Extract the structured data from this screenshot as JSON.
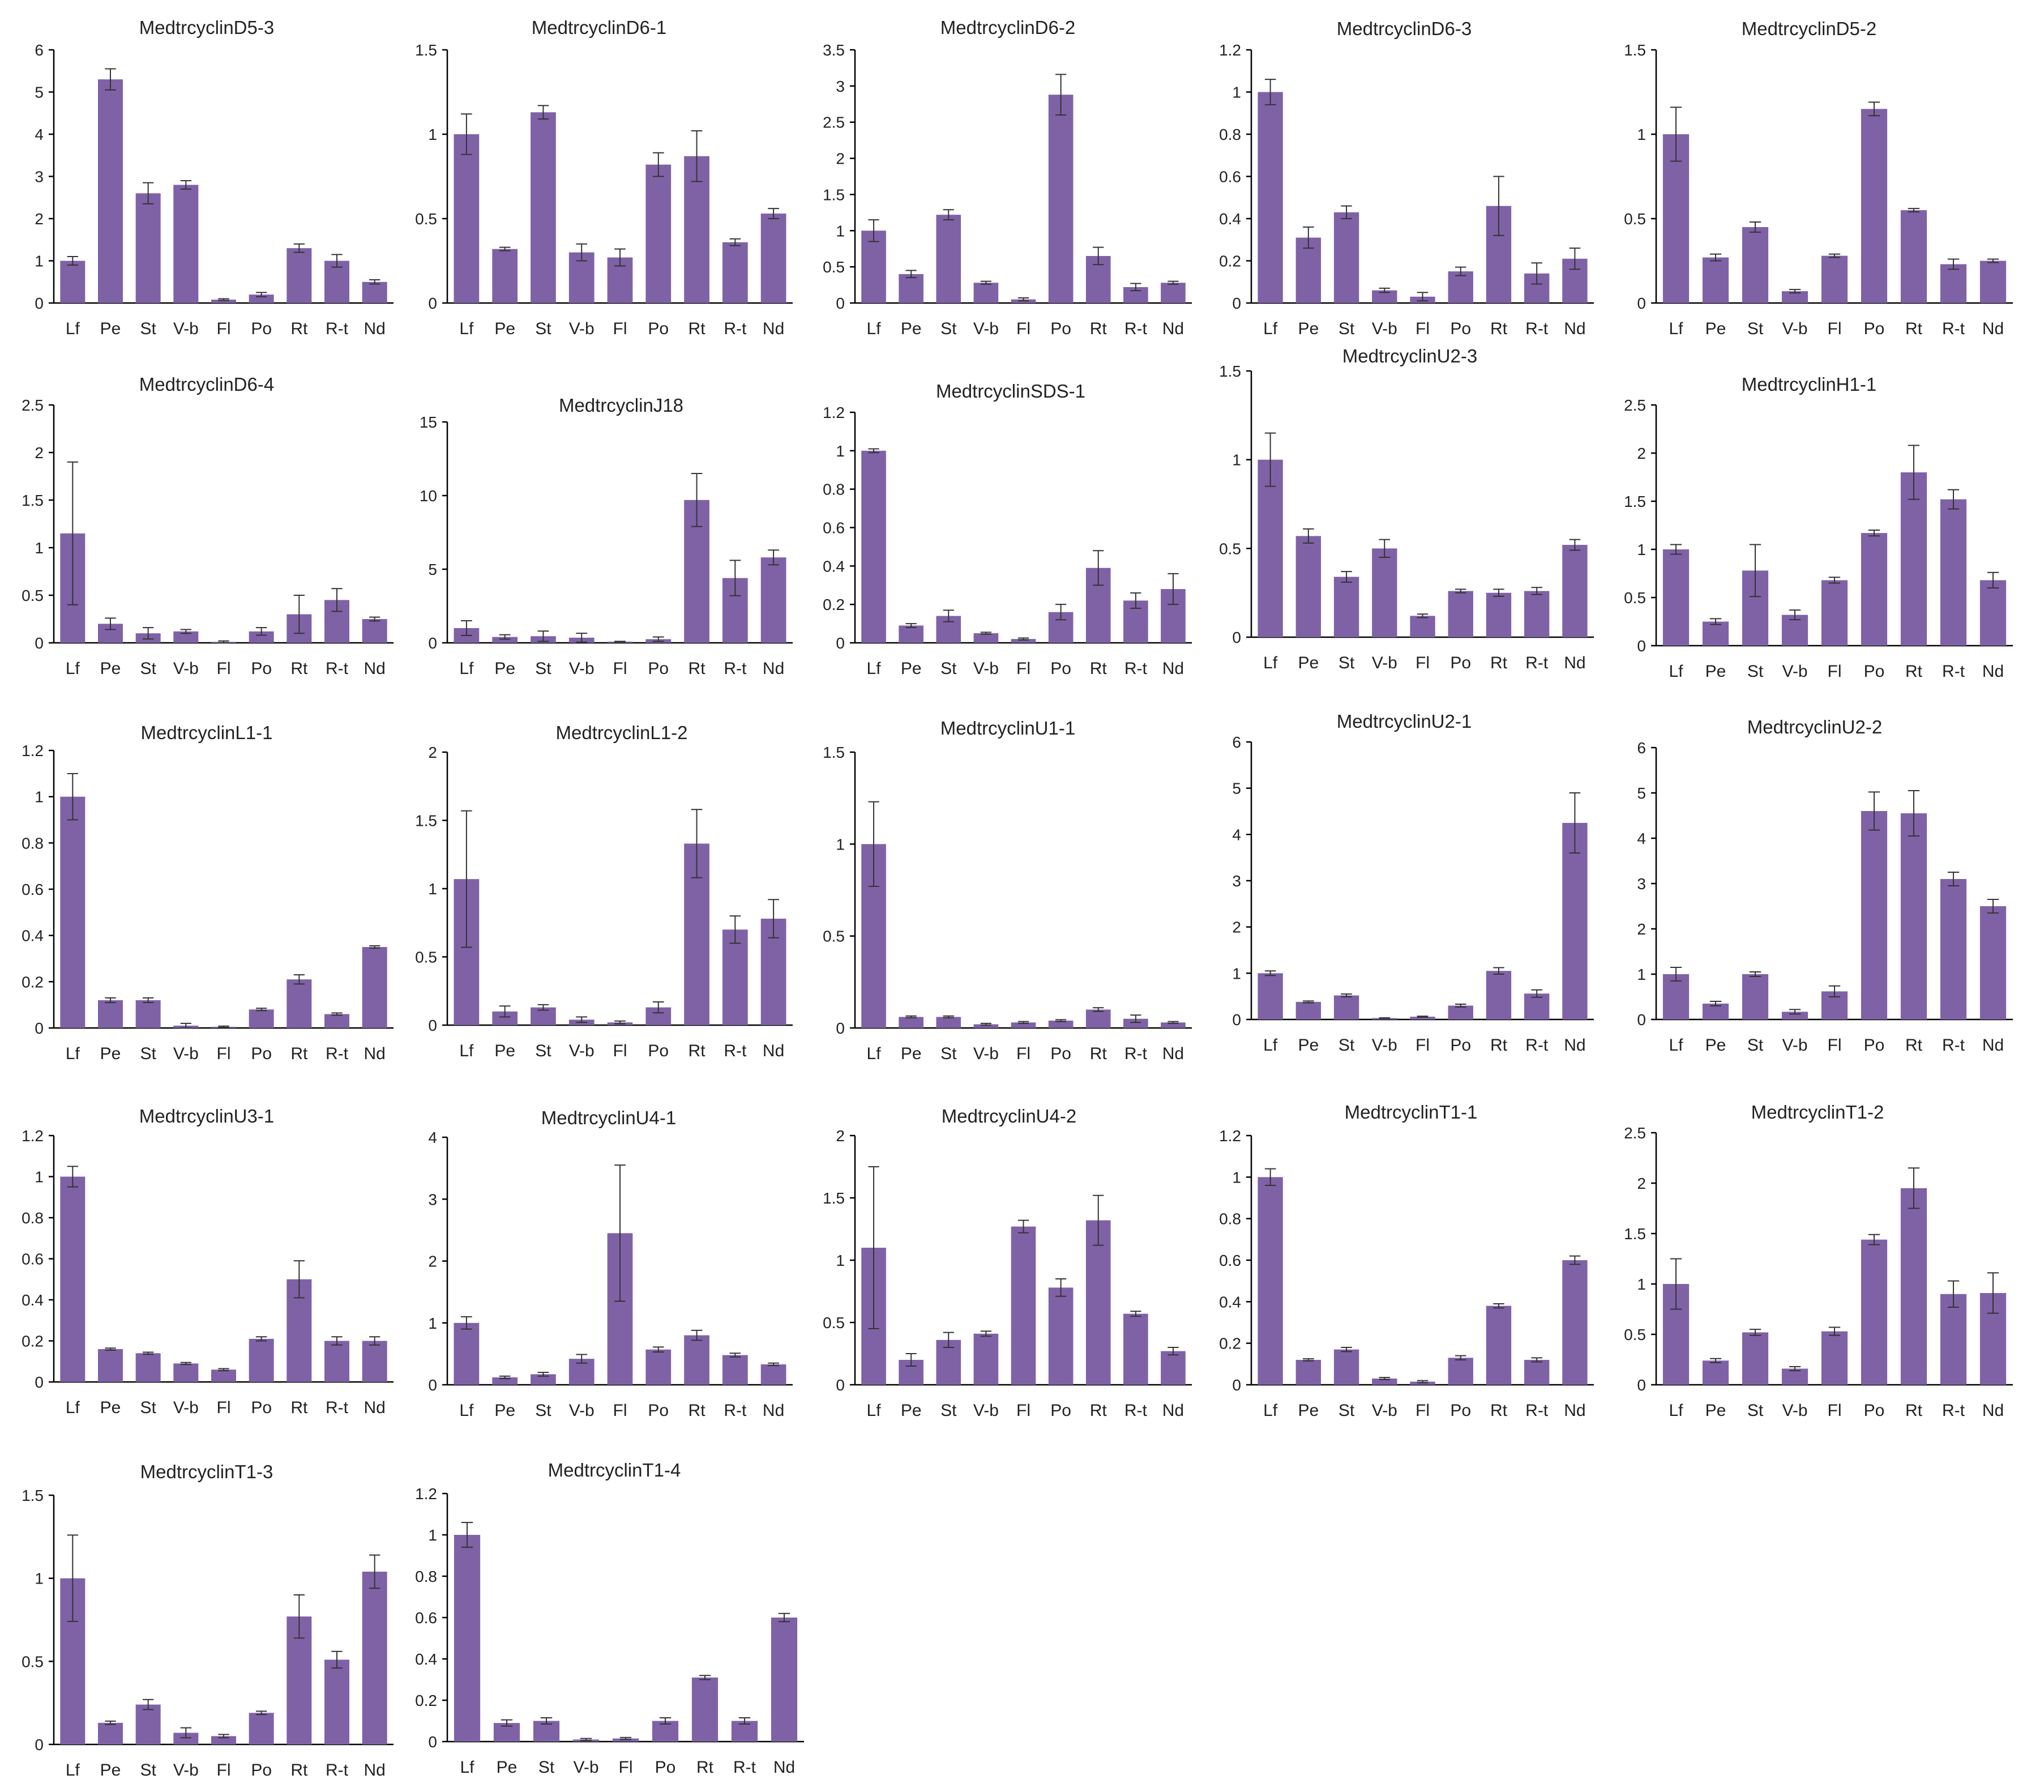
{
  "colors": {
    "bar": "#7f62a6",
    "axis": "#000000",
    "text": "#222222",
    "background": "#ffffff"
  },
  "chart_data": [
    {
      "type": "bar",
      "title": "MedtrcyclinD5-3",
      "categories": [
        "Lf",
        "Pe",
        "St",
        "V-b",
        "Fl",
        "Po",
        "Rt",
        "R-t",
        "Nd"
      ],
      "values": [
        1.0,
        5.3,
        2.6,
        2.8,
        0.08,
        0.2,
        1.3,
        1.0,
        0.5
      ],
      "errors": [
        0.1,
        0.25,
        0.25,
        0.1,
        0.02,
        0.05,
        0.1,
        0.15,
        0.05
      ],
      "ylim": [
        0,
        6
      ],
      "yticks": [
        "0",
        "1",
        "2",
        "3",
        "4",
        "5",
        "6"
      ],
      "xlabel": "",
      "ylabel": ""
    },
    {
      "type": "bar",
      "title": "MedtrcyclinD6-1",
      "categories": [
        "Lf",
        "Pe",
        "St",
        "V-b",
        "Fl",
        "Po",
        "Rt",
        "R-t",
        "Nd"
      ],
      "values": [
        1.0,
        0.32,
        1.13,
        0.3,
        0.27,
        0.82,
        0.87,
        0.36,
        0.53
      ],
      "errors": [
        0.12,
        0.01,
        0.04,
        0.05,
        0.05,
        0.07,
        0.15,
        0.02,
        0.03
      ],
      "ylim": [
        0,
        1.5
      ],
      "yticks": [
        "0",
        "0.5",
        "1",
        "1.5"
      ],
      "xlabel": "",
      "ylabel": ""
    },
    {
      "type": "bar",
      "title": "MedtrcyclinD6-2",
      "categories": [
        "Lf",
        "Pe",
        "St",
        "V-b",
        "Fl",
        "Po",
        "Rt",
        "R-t",
        "Nd"
      ],
      "values": [
        1.0,
        0.4,
        1.22,
        0.28,
        0.05,
        2.88,
        0.65,
        0.22,
        0.28
      ],
      "errors": [
        0.15,
        0.05,
        0.07,
        0.02,
        0.02,
        0.28,
        0.12,
        0.05,
        0.02
      ],
      "ylim": [
        0,
        3.5
      ],
      "yticks": [
        "0",
        "0.5",
        "1",
        "1.5",
        "2",
        "2.5",
        "3",
        "3.5"
      ],
      "xlabel": "",
      "ylabel": ""
    },
    {
      "type": "bar",
      "title": "MedtrcyclinD6-3",
      "categories": [
        "Lf",
        "Pe",
        "St",
        "V-b",
        "Fl",
        "Po",
        "Rt",
        "R-t",
        "Nd"
      ],
      "values": [
        1.0,
        0.31,
        0.43,
        0.06,
        0.03,
        0.15,
        0.46,
        0.14,
        0.21
      ],
      "errors": [
        0.06,
        0.05,
        0.03,
        0.01,
        0.02,
        0.02,
        0.14,
        0.05,
        0.05
      ],
      "ylim": [
        0,
        1.2
      ],
      "yticks": [
        "0",
        "0.2",
        "0.4",
        "0.6",
        "0.8",
        "1",
        "1.2"
      ],
      "xlabel": "",
      "ylabel": ""
    },
    {
      "type": "bar",
      "title": "MedtrcyclinD5-2",
      "categories": [
        "Lf",
        "Pe",
        "St",
        "V-b",
        "Fl",
        "Po",
        "Rt",
        "R-t",
        "Nd"
      ],
      "values": [
        1.0,
        0.27,
        0.45,
        0.07,
        0.28,
        1.15,
        0.55,
        0.23,
        0.25
      ],
      "errors": [
        0.16,
        0.02,
        0.03,
        0.01,
        0.01,
        0.04,
        0.01,
        0.03,
        0.01
      ],
      "ylim": [
        0,
        1.5
      ],
      "yticks": [
        "0",
        "0.5",
        "1",
        "1.5"
      ],
      "xlabel": "",
      "ylabel": ""
    },
    {
      "type": "bar",
      "title": "MedtrcyclinD6-4",
      "categories": [
        "Lf",
        "Pe",
        "St",
        "V-b",
        "Fl",
        "Po",
        "Rt",
        "R-t",
        "Nd"
      ],
      "values": [
        1.15,
        0.2,
        0.1,
        0.12,
        0.01,
        0.12,
        0.3,
        0.45,
        0.25
      ],
      "errors": [
        0.75,
        0.06,
        0.06,
        0.02,
        0.01,
        0.04,
        0.2,
        0.12,
        0.02
      ],
      "ylim": [
        0,
        2.5
      ],
      "yticks": [
        "0",
        "0.5",
        "1",
        "1.5",
        "2",
        "2.5"
      ],
      "xlabel": "",
      "ylabel": ""
    },
    {
      "type": "bar",
      "title": "MedtrcyclinJ18",
      "categories": [
        "Lf",
        "Pe",
        "St",
        "V-b",
        "Fl",
        "Po",
        "Rt",
        "R-t",
        "Nd"
      ],
      "values": [
        1.0,
        0.4,
        0.45,
        0.35,
        0.08,
        0.25,
        9.7,
        4.4,
        5.8
      ],
      "errors": [
        0.5,
        0.15,
        0.35,
        0.3,
        0.02,
        0.15,
        1.8,
        1.2,
        0.5
      ],
      "ylim": [
        0,
        15
      ],
      "yticks": [
        "0",
        "5",
        "10",
        "15"
      ],
      "xlabel": "",
      "ylabel": ""
    },
    {
      "type": "bar",
      "title": "MedtrcyclinSDS-1",
      "categories": [
        "Lf",
        "Pe",
        "St",
        "V-b",
        "Fl",
        "Po",
        "Rt",
        "R-t",
        "Nd"
      ],
      "values": [
        1.0,
        0.09,
        0.14,
        0.05,
        0.02,
        0.16,
        0.39,
        0.22,
        0.28
      ],
      "errors": [
        0.01,
        0.01,
        0.03,
        0.005,
        0.005,
        0.04,
        0.09,
        0.04,
        0.08
      ],
      "ylim": [
        0,
        1.2
      ],
      "yticks": [
        "0",
        "0.2",
        "0.4",
        "0.6",
        "0.8",
        "1",
        "1.2"
      ],
      "xlabel": "",
      "ylabel": ""
    },
    {
      "type": "bar",
      "title": "MedtrcyclinU2-3",
      "categories": [
        "Lf",
        "Pe",
        "St",
        "V-b",
        "Fl",
        "Po",
        "Rt",
        "R-t",
        "Nd"
      ],
      "values": [
        1.0,
        0.57,
        0.34,
        0.5,
        0.12,
        0.26,
        0.25,
        0.26,
        0.52
      ],
      "errors": [
        0.15,
        0.04,
        0.03,
        0.05,
        0.01,
        0.01,
        0.02,
        0.02,
        0.03
      ],
      "ylim": [
        0,
        1.5
      ],
      "yticks": [
        "0",
        "0.5",
        "1",
        "1.5"
      ],
      "xlabel": "",
      "ylabel": ""
    },
    {
      "type": "bar",
      "title": "MedtrcyclinH1-1",
      "categories": [
        "Lf",
        "Pe",
        "St",
        "V-b",
        "Fl",
        "Po",
        "Rt",
        "R-t",
        "Nd"
      ],
      "values": [
        1.0,
        0.25,
        0.78,
        0.32,
        0.68,
        1.17,
        1.8,
        1.52,
        0.68
      ],
      "errors": [
        0.05,
        0.03,
        0.27,
        0.05,
        0.03,
        0.03,
        0.28,
        0.1,
        0.08
      ],
      "ylim": [
        0,
        2.5
      ],
      "yticks": [
        "0",
        "0.5",
        "1",
        "1.5",
        "2",
        "2.5"
      ],
      "xlabel": "",
      "ylabel": ""
    },
    {
      "type": "bar",
      "title": "MedtrcyclinL1-1",
      "categories": [
        "Lf",
        "Pe",
        "St",
        "V-b",
        "Fl",
        "Po",
        "Rt",
        "R-t",
        "Nd"
      ],
      "values": [
        1.0,
        0.12,
        0.12,
        0.01,
        0.005,
        0.08,
        0.21,
        0.06,
        0.35
      ],
      "errors": [
        0.1,
        0.01,
        0.01,
        0.01,
        0.003,
        0.005,
        0.02,
        0.005,
        0.005
      ],
      "ylim": [
        0,
        1.2
      ],
      "yticks": [
        "0",
        "0.2",
        "0.4",
        "0.6",
        "0.8",
        "1",
        "1.2"
      ],
      "xlabel": "",
      "ylabel": ""
    },
    {
      "type": "bar",
      "title": "MedtrcyclinL1-2",
      "categories": [
        "Lf",
        "Pe",
        "St",
        "V-b",
        "Fl",
        "Po",
        "Rt",
        "R-t",
        "Nd"
      ],
      "values": [
        1.07,
        0.1,
        0.13,
        0.04,
        0.02,
        0.13,
        1.33,
        0.7,
        0.78
      ],
      "errors": [
        0.5,
        0.04,
        0.02,
        0.02,
        0.01,
        0.04,
        0.25,
        0.1,
        0.14
      ],
      "ylim": [
        0,
        2
      ],
      "yticks": [
        "0",
        "0.5",
        "1",
        "1.5",
        "2"
      ],
      "xlabel": "",
      "ylabel": ""
    },
    {
      "type": "bar",
      "title": "MedtrcyclinU1-1",
      "categories": [
        "Lf",
        "Pe",
        "St",
        "V-b",
        "Fl",
        "Po",
        "Rt",
        "R-t",
        "Nd"
      ],
      "values": [
        1.0,
        0.06,
        0.06,
        0.02,
        0.03,
        0.04,
        0.1,
        0.05,
        0.03
      ],
      "errors": [
        0.23,
        0.005,
        0.005,
        0.005,
        0.005,
        0.005,
        0.01,
        0.02,
        0.005
      ],
      "ylim": [
        0,
        1.5
      ],
      "yticks": [
        "0",
        "0.5",
        "1",
        "1.5"
      ],
      "xlabel": "",
      "ylabel": ""
    },
    {
      "type": "bar",
      "title": "MedtrcyclinU2-1",
      "categories": [
        "Lf",
        "Pe",
        "St",
        "V-b",
        "Fl",
        "Po",
        "Rt",
        "R-t",
        "Nd"
      ],
      "values": [
        1.0,
        0.38,
        0.52,
        0.03,
        0.06,
        0.3,
        1.05,
        0.56,
        4.25
      ],
      "errors": [
        0.05,
        0.02,
        0.03,
        0.005,
        0.01,
        0.03,
        0.07,
        0.08,
        0.65
      ],
      "ylim": [
        0,
        6
      ],
      "yticks": [
        "0",
        "1",
        "2",
        "3",
        "4",
        "5",
        "6"
      ],
      "xlabel": "",
      "ylabel": ""
    },
    {
      "type": "bar",
      "title": "MedtrcyclinU2-2",
      "categories": [
        "Lf",
        "Pe",
        "St",
        "V-b",
        "Fl",
        "Po",
        "Rt",
        "R-t",
        "Nd"
      ],
      "values": [
        1.0,
        0.35,
        1.0,
        0.17,
        0.62,
        4.6,
        4.55,
        3.1,
        2.5
      ],
      "errors": [
        0.15,
        0.05,
        0.05,
        0.05,
        0.12,
        0.42,
        0.5,
        0.15,
        0.15
      ],
      "ylim": [
        0,
        6
      ],
      "yticks": [
        "0",
        "1",
        "2",
        "3",
        "4",
        "5",
        "6"
      ],
      "xlabel": "",
      "ylabel": ""
    },
    {
      "type": "bar",
      "title": "MedtrcyclinU3-1",
      "categories": [
        "Lf",
        "Pe",
        "St",
        "V-b",
        "Fl",
        "Po",
        "Rt",
        "R-t",
        "Nd"
      ],
      "values": [
        1.0,
        0.16,
        0.14,
        0.09,
        0.06,
        0.21,
        0.5,
        0.2,
        0.2
      ],
      "errors": [
        0.05,
        0.005,
        0.005,
        0.005,
        0.005,
        0.01,
        0.09,
        0.02,
        0.02
      ],
      "ylim": [
        0,
        1.2
      ],
      "yticks": [
        "0",
        "0.2",
        "0.4",
        "0.6",
        "0.8",
        "1",
        "1.2"
      ],
      "xlabel": "",
      "ylabel": ""
    },
    {
      "type": "bar",
      "title": "MedtrcyclinU4-1",
      "categories": [
        "Lf",
        "Pe",
        "St",
        "V-b",
        "Fl",
        "Po",
        "Rt",
        "R-t",
        "Nd"
      ],
      "values": [
        1.0,
        0.12,
        0.17,
        0.42,
        2.45,
        0.57,
        0.8,
        0.48,
        0.33
      ],
      "errors": [
        0.1,
        0.02,
        0.03,
        0.07,
        1.1,
        0.04,
        0.08,
        0.03,
        0.02
      ],
      "ylim": [
        0,
        4
      ],
      "yticks": [
        "0",
        "1",
        "2",
        "3",
        "4"
      ],
      "xlabel": "",
      "ylabel": ""
    },
    {
      "type": "bar",
      "title": "MedtrcyclinU4-2",
      "categories": [
        "Lf",
        "Pe",
        "St",
        "V-b",
        "Fl",
        "Po",
        "Rt",
        "R-t",
        "Nd"
      ],
      "values": [
        1.1,
        0.2,
        0.36,
        0.41,
        1.27,
        0.78,
        1.32,
        0.57,
        0.27
      ],
      "errors": [
        0.65,
        0.05,
        0.06,
        0.02,
        0.05,
        0.07,
        0.2,
        0.02,
        0.03
      ],
      "ylim": [
        0,
        2
      ],
      "yticks": [
        "0",
        "0.5",
        "1",
        "1.5",
        "2"
      ],
      "xlabel": "",
      "ylabel": ""
    },
    {
      "type": "bar",
      "title": "MedtrcyclinT1-1",
      "categories": [
        "Lf",
        "Pe",
        "St",
        "V-b",
        "Fl",
        "Po",
        "Rt",
        "R-t",
        "Nd"
      ],
      "values": [
        1.0,
        0.12,
        0.17,
        0.03,
        0.015,
        0.13,
        0.38,
        0.12,
        0.6
      ],
      "errors": [
        0.04,
        0.005,
        0.01,
        0.005,
        0.005,
        0.01,
        0.01,
        0.01,
        0.02
      ],
      "ylim": [
        0,
        1.2
      ],
      "yticks": [
        "0",
        "0.2",
        "0.4",
        "0.6",
        "0.8",
        "1",
        "1.2"
      ],
      "xlabel": "",
      "ylabel": ""
    },
    {
      "type": "bar",
      "title": "MedtrcyclinT1-2",
      "categories": [
        "Lf",
        "Pe",
        "St",
        "V-b",
        "Fl",
        "Po",
        "Rt",
        "R-t",
        "Nd"
      ],
      "values": [
        1.0,
        0.24,
        0.52,
        0.16,
        0.53,
        1.44,
        1.95,
        0.9,
        0.91
      ],
      "errors": [
        0.25,
        0.02,
        0.03,
        0.02,
        0.04,
        0.05,
        0.2,
        0.13,
        0.2
      ],
      "ylim": [
        0,
        2.5
      ],
      "yticks": [
        "0",
        "0.5",
        "1",
        "1.5",
        "2",
        "2.5"
      ],
      "xlabel": "",
      "ylabel": ""
    },
    {
      "type": "bar",
      "title": "MedtrcyclinT1-3",
      "categories": [
        "Lf",
        "Pe",
        "St",
        "V-b",
        "Fl",
        "Po",
        "Rt",
        "R-t",
        "Nd"
      ],
      "values": [
        1.0,
        0.13,
        0.24,
        0.07,
        0.05,
        0.19,
        0.77,
        0.51,
        1.04
      ],
      "errors": [
        0.26,
        0.01,
        0.03,
        0.03,
        0.01,
        0.01,
        0.13,
        0.05,
        0.1
      ],
      "ylim": [
        0,
        1.5
      ],
      "yticks": [
        "0",
        "0.5",
        "1",
        "1.5"
      ],
      "xlabel": "",
      "ylabel": ""
    },
    {
      "type": "bar",
      "title": "MedtrcyclinT1-4",
      "categories": [
        "Lf",
        "Pe",
        "St",
        "V-b",
        "Fl",
        "Po",
        "Rt",
        "R-t",
        "Nd"
      ],
      "values": [
        1.0,
        0.09,
        0.1,
        0.01,
        0.015,
        0.1,
        0.31,
        0.1,
        0.6
      ],
      "errors": [
        0.06,
        0.015,
        0.015,
        0.005,
        0.005,
        0.015,
        0.01,
        0.015,
        0.02
      ],
      "ylim": [
        0,
        1.2
      ],
      "yticks": [
        "0",
        "0.2",
        "0.4",
        "0.6",
        "0.8",
        "1",
        "1.2"
      ],
      "xlabel": "",
      "ylabel": ""
    }
  ]
}
